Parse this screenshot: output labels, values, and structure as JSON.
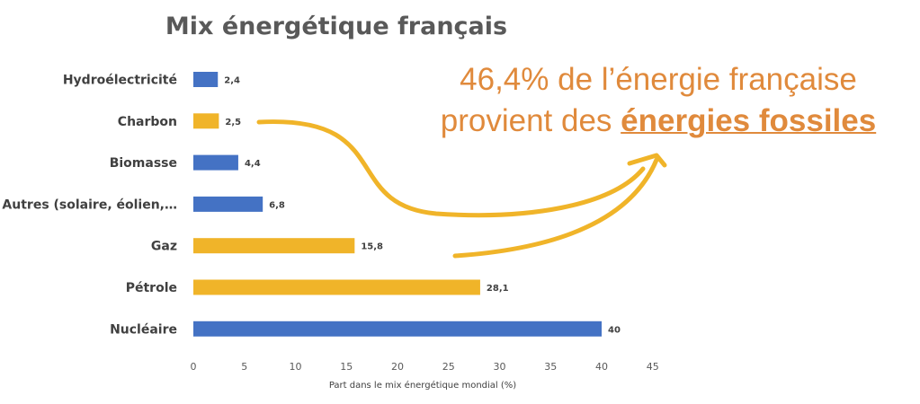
{
  "chart_data": {
    "type": "bar",
    "orientation": "horizontal",
    "title": "Mix énergétique français",
    "categories": [
      "Hydroélectricité",
      "Charbon",
      "Biomasse",
      "Autres (solaire, éolien,…",
      "Gaz",
      "Pétrole",
      "Nucléaire"
    ],
    "values": [
      2.4,
      2.5,
      4.4,
      6.8,
      15.8,
      28.1,
      40
    ],
    "value_labels": [
      "2,4",
      "2,5",
      "4,4",
      "6,8",
      "15,8",
      "28,1",
      "40"
    ],
    "fossil": [
      false,
      true,
      false,
      false,
      true,
      true,
      false
    ],
    "xlabel": "Part dans le mix énergétique mondial (%)",
    "ylabel": "",
    "xlim": [
      0,
      45
    ],
    "xticks": [
      0,
      5,
      10,
      15,
      20,
      25,
      30,
      35,
      40,
      45
    ],
    "grid": false,
    "colors": {
      "default": "#4472C4",
      "fossil": "#F0B429"
    }
  },
  "annotation": {
    "line1": "46,4% de l’énergie française",
    "line2_prefix": "provient des ",
    "line2_emphasis": "énergies fossiles",
    "color": "#E08A3C",
    "arrow_color": "#F0B429"
  }
}
